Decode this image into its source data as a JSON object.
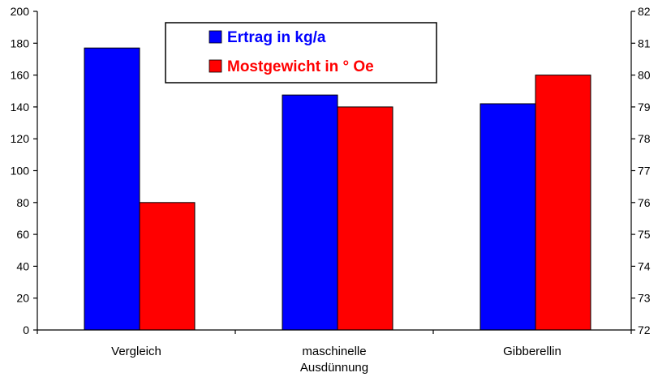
{
  "chart_data": {
    "type": "bar",
    "categories": [
      [
        "Vergleich"
      ],
      [
        "maschinelle",
        "Ausdünnung"
      ],
      [
        "Gibberellin"
      ]
    ],
    "series": [
      {
        "name": "Ertrag in kg/a",
        "axis": "left",
        "color": "#0000ff",
        "values": [
          177,
          147.5,
          142
        ]
      },
      {
        "name": "Mostgewicht in ° Oe",
        "axis": "right",
        "color": "#ff0000",
        "values": [
          76,
          79,
          80
        ]
      }
    ],
    "y_left": {
      "min": 0,
      "max": 200,
      "step": 20
    },
    "y_right": {
      "min": 72,
      "max": 82,
      "step": 1
    },
    "title": "",
    "xlabel": "",
    "ylabel": "",
    "grid": false,
    "legend": {
      "placement": "top-center",
      "text_colors": [
        "#0000ff",
        "#ff0000"
      ]
    }
  }
}
